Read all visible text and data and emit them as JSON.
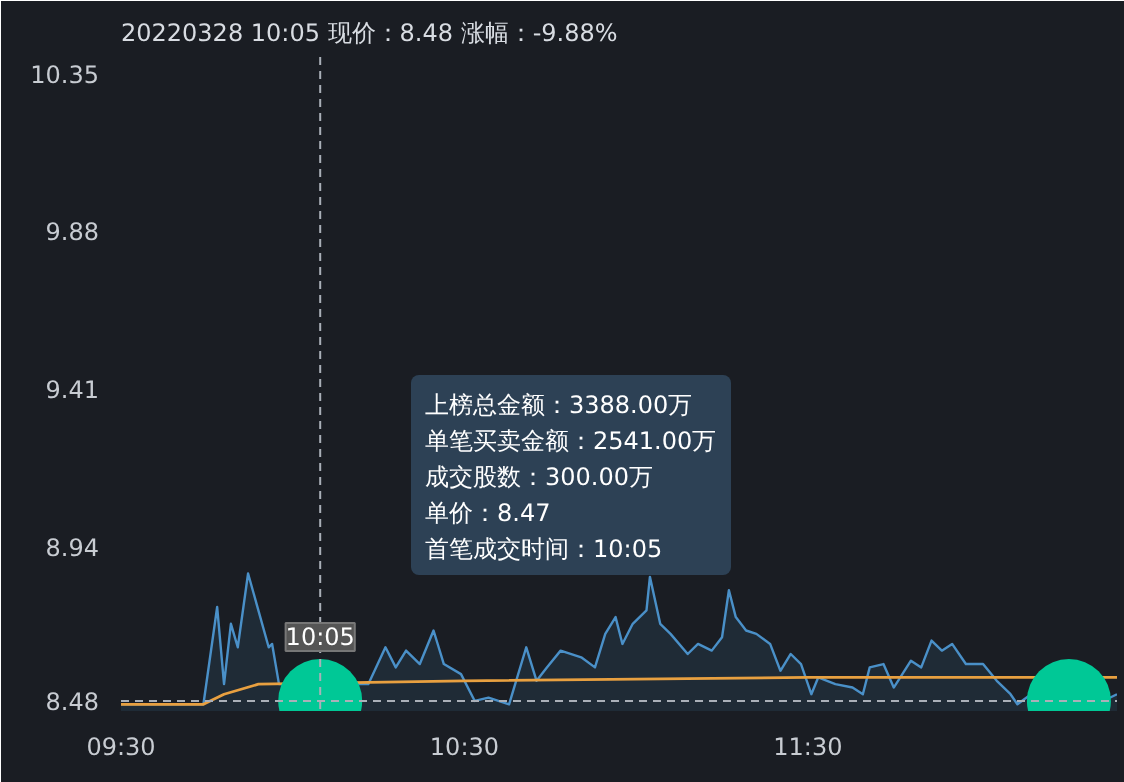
{
  "chart_data": {
    "type": "area",
    "title": "20220328 10:05 现价：8.48 涨幅：-9.88%",
    "annotations": [
      "上榜总金额：3388.00万",
      "单笔买卖金额：2541.00万",
      "成交股数：300.00万",
      "单价：8.47",
      "首笔成交时间：10:05"
    ],
    "series": [
      {
        "color": "#4a90c8",
        "x": [
          9.5,
          9.74,
          9.78,
          9.8,
          9.82,
          9.84,
          9.87,
          9.9,
          9.93,
          9.94,
          9.96,
          10.22,
          10.27,
          10.3,
          10.33,
          10.37,
          10.41,
          10.44,
          10.49,
          10.53,
          10.57,
          10.63,
          10.68,
          10.71,
          10.74,
          10.78,
          10.84,
          10.88,
          10.91,
          10.94,
          10.96,
          10.99,
          11.03,
          11.04,
          11.07,
          11.1,
          11.15,
          11.18,
          11.22,
          11.25,
          11.27,
          11.29,
          11.32,
          11.35,
          11.39,
          11.42,
          11.45,
          11.48,
          11.51,
          11.53,
          11.58,
          11.63,
          11.66,
          11.68,
          11.72,
          11.75,
          11.8,
          11.83,
          11.86,
          11.89,
          11.92,
          11.96,
          12.01,
          12.05,
          12.09,
          12.11,
          12.15,
          12.2,
          12.34,
          12.4
        ],
        "values": [
          8.47,
          8.47,
          8.76,
          8.53,
          8.71,
          8.64,
          8.86,
          8.75,
          8.64,
          8.65,
          8.53,
          8.53,
          8.64,
          8.58,
          8.63,
          8.59,
          8.69,
          8.59,
          8.56,
          8.48,
          8.49,
          8.47,
          8.64,
          8.54,
          8.58,
          8.63,
          8.61,
          8.58,
          8.68,
          8.73,
          8.65,
          8.71,
          8.75,
          8.85,
          8.71,
          8.68,
          8.62,
          8.65,
          8.63,
          8.67,
          8.81,
          8.73,
          8.69,
          8.68,
          8.65,
          8.57,
          8.62,
          8.59,
          8.5,
          8.55,
          8.53,
          8.52,
          8.5,
          8.58,
          8.59,
          8.52,
          8.6,
          8.58,
          8.66,
          8.63,
          8.65,
          8.59,
          8.59,
          8.54,
          8.5,
          8.47,
          8.5,
          8.48,
          8.47,
          8.5
        ]
      },
      {
        "type": "line",
        "color": "#e8a040",
        "x": [
          9.5,
          9.74,
          9.8,
          9.9,
          10.5,
          11.5,
          12.4
        ],
        "values": [
          8.47,
          8.47,
          8.5,
          8.53,
          8.54,
          8.55,
          8.55
        ]
      },
      {
        "type": "scatter",
        "color": "#00c896",
        "marker": "circle",
        "x": [
          10.08,
          12.26
        ],
        "values": [
          8.48,
          8.48
        ]
      }
    ],
    "xlim": [
      9.5,
      12.4
    ],
    "xticks": [
      {
        "value": 9.5,
        "label": "09:30"
      },
      {
        "value": 10.5,
        "label": "10:30"
      },
      {
        "value": 11.5,
        "label": "11:30"
      }
    ],
    "ylim": [
      8.45,
      10.4
    ],
    "yticks": [
      8.48,
      8.94,
      9.41,
      9.88,
      10.35
    ],
    "ref_lines": [
      {
        "axis": "y",
        "value": 8.48,
        "label": null,
        "line_style": "dashed",
        "color": "#aab0b8"
      },
      {
        "axis": "x",
        "value": 10.08,
        "label": "10:05",
        "line_style": "dashed",
        "color": "#aab0b8"
      }
    ],
    "grid": false
  }
}
